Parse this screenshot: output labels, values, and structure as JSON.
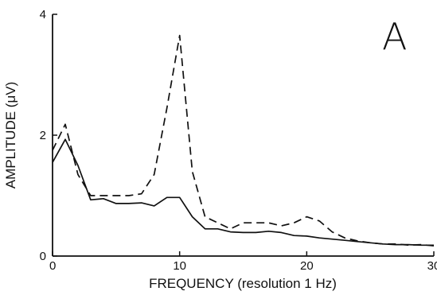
{
  "panel_label": "A",
  "chart_data": {
    "type": "line",
    "title": "",
    "xlabel": "FREQUENCY (resolution 1 Hz)",
    "ylabel": "AMPLITUDE (μV)",
    "xlim": [
      0,
      30
    ],
    "ylim": [
      0,
      4
    ],
    "x_ticks": [
      0,
      10,
      20,
      30
    ],
    "x_tick_labels": [
      "0",
      "10",
      "20",
      "30"
    ],
    "y_ticks": [
      0,
      2,
      4
    ],
    "y_tick_labels": [
      "0",
      "2",
      "4"
    ],
    "grid": false,
    "legend": "none",
    "series": [
      {
        "style": "solid",
        "color": "#111111",
        "x": [
          0,
          1,
          2,
          3,
          4,
          5,
          6,
          7,
          8,
          9,
          10,
          11,
          12,
          13,
          14,
          15,
          16,
          17,
          18,
          19,
          20,
          21,
          22,
          23,
          24,
          25,
          26,
          27,
          28,
          29,
          30
        ],
        "y": [
          1.55,
          1.93,
          1.5,
          0.93,
          0.95,
          0.87,
          0.87,
          0.88,
          0.83,
          0.97,
          0.97,
          0.65,
          0.45,
          0.45,
          0.4,
          0.39,
          0.39,
          0.41,
          0.39,
          0.34,
          0.33,
          0.3,
          0.28,
          0.26,
          0.24,
          0.22,
          0.2,
          0.19,
          0.19,
          0.18,
          0.18
        ]
      },
      {
        "style": "dashed",
        "color": "#111111",
        "x": [
          0,
          1,
          2,
          3,
          4,
          5,
          6,
          7,
          8,
          9,
          10,
          11,
          12,
          13,
          14,
          15,
          16,
          17,
          18,
          19,
          20,
          21,
          22,
          23,
          24,
          25,
          26,
          27,
          28,
          29,
          30
        ],
        "y": [
          1.75,
          2.18,
          1.35,
          1.0,
          1.0,
          1.0,
          1.0,
          1.03,
          1.35,
          2.45,
          3.65,
          1.4,
          0.65,
          0.55,
          0.45,
          0.55,
          0.55,
          0.55,
          0.5,
          0.55,
          0.65,
          0.58,
          0.4,
          0.3,
          0.25,
          0.22,
          0.2,
          0.2,
          0.18,
          0.19,
          0.17
        ]
      }
    ]
  }
}
